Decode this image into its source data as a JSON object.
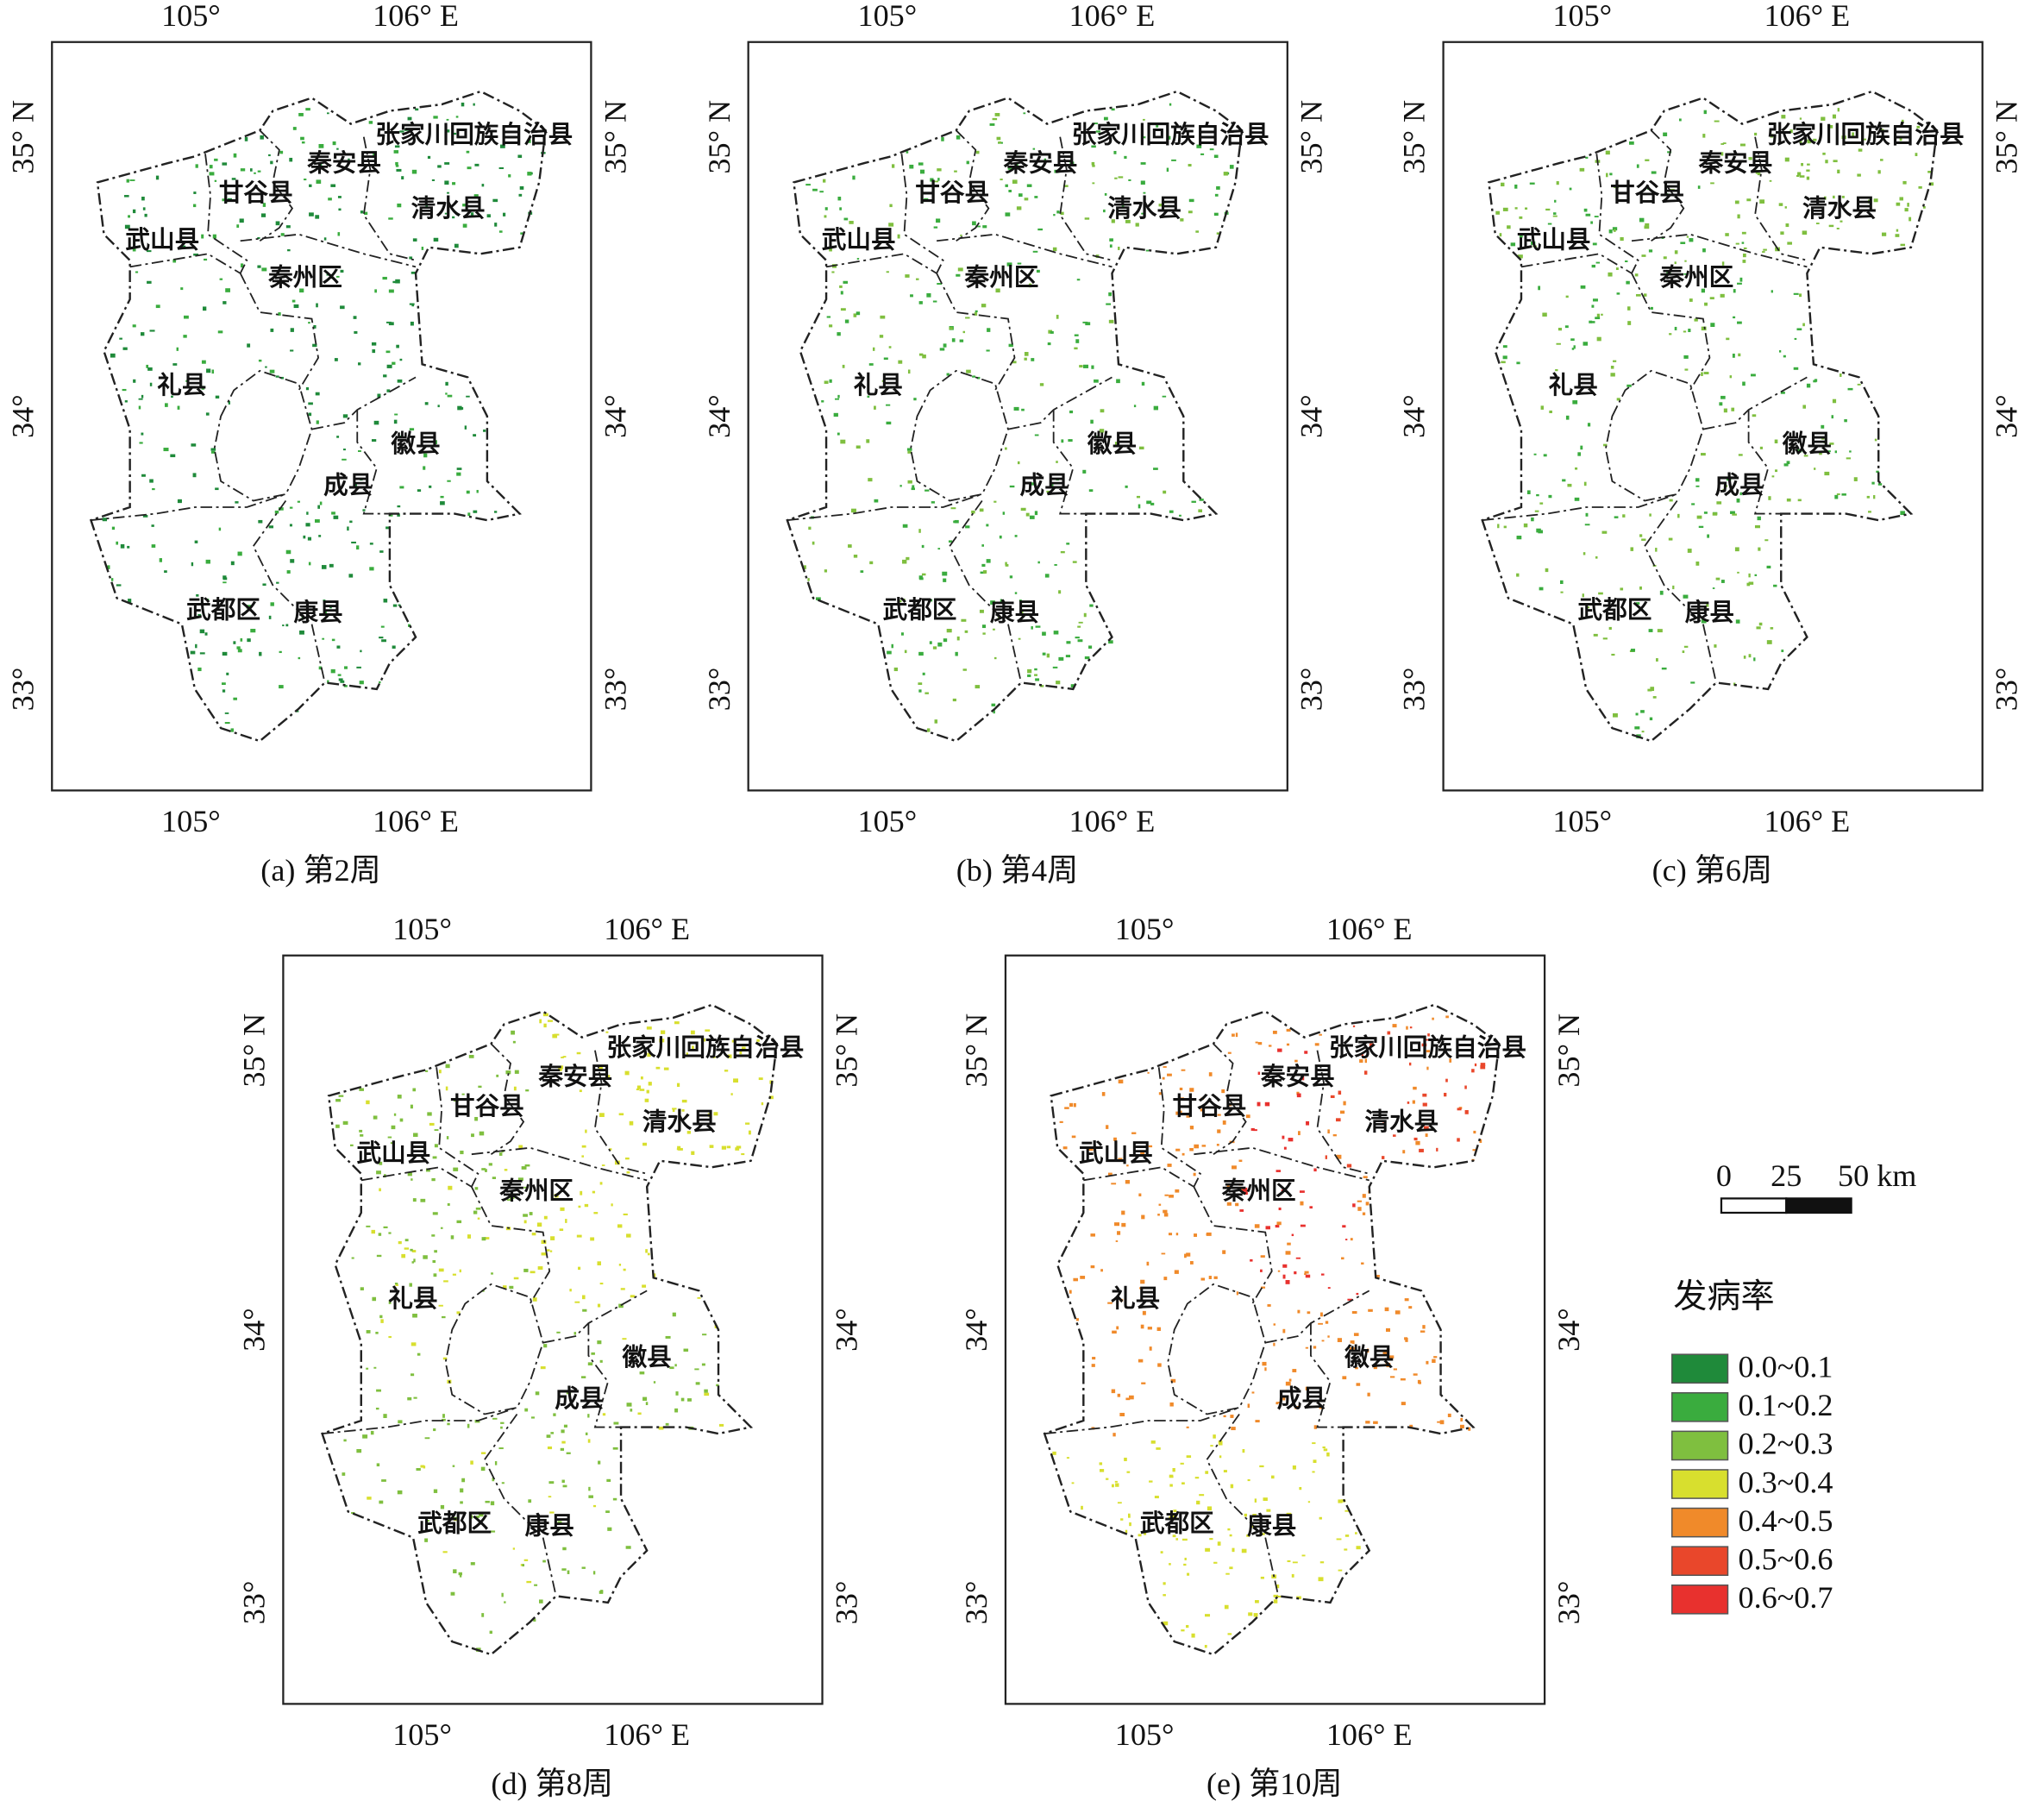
{
  "map_labels": {
    "lon_ticks": [
      "105°",
      "106°  E"
    ],
    "lat_ticks": [
      "35° N",
      "34°",
      "33°"
    ],
    "counties": [
      "张家川回族自治县",
      "秦安县",
      "甘谷县",
      "清水县",
      "武山县",
      "秦州区",
      "礼县",
      "徽县",
      "成县",
      "武都区",
      "康县"
    ]
  },
  "panels": [
    {
      "caption": "(a) 第2周"
    },
    {
      "caption": "(b) 第4周"
    },
    {
      "caption": "(c) 第6周"
    },
    {
      "caption": "(d) 第8周"
    },
    {
      "caption": "(e) 第10周"
    }
  ],
  "scale_bar": {
    "labels": [
      "0",
      "25",
      "50 km"
    ]
  },
  "legend": {
    "title": "发病率",
    "classes": [
      {
        "label": "0.0~0.1",
        "color": "#1f8a3a"
      },
      {
        "label": "0.1~0.2",
        "color": "#3aac3e"
      },
      {
        "label": "0.2~0.3",
        "color": "#7fbf3f"
      },
      {
        "label": "0.3~0.4",
        "color": "#d8df2e"
      },
      {
        "label": "0.4~0.5",
        "color": "#f08a2a"
      },
      {
        "label": "0.5~0.6",
        "color": "#e9472b"
      },
      {
        "label": "0.6~0.7",
        "color": "#e8312e"
      }
    ]
  }
}
